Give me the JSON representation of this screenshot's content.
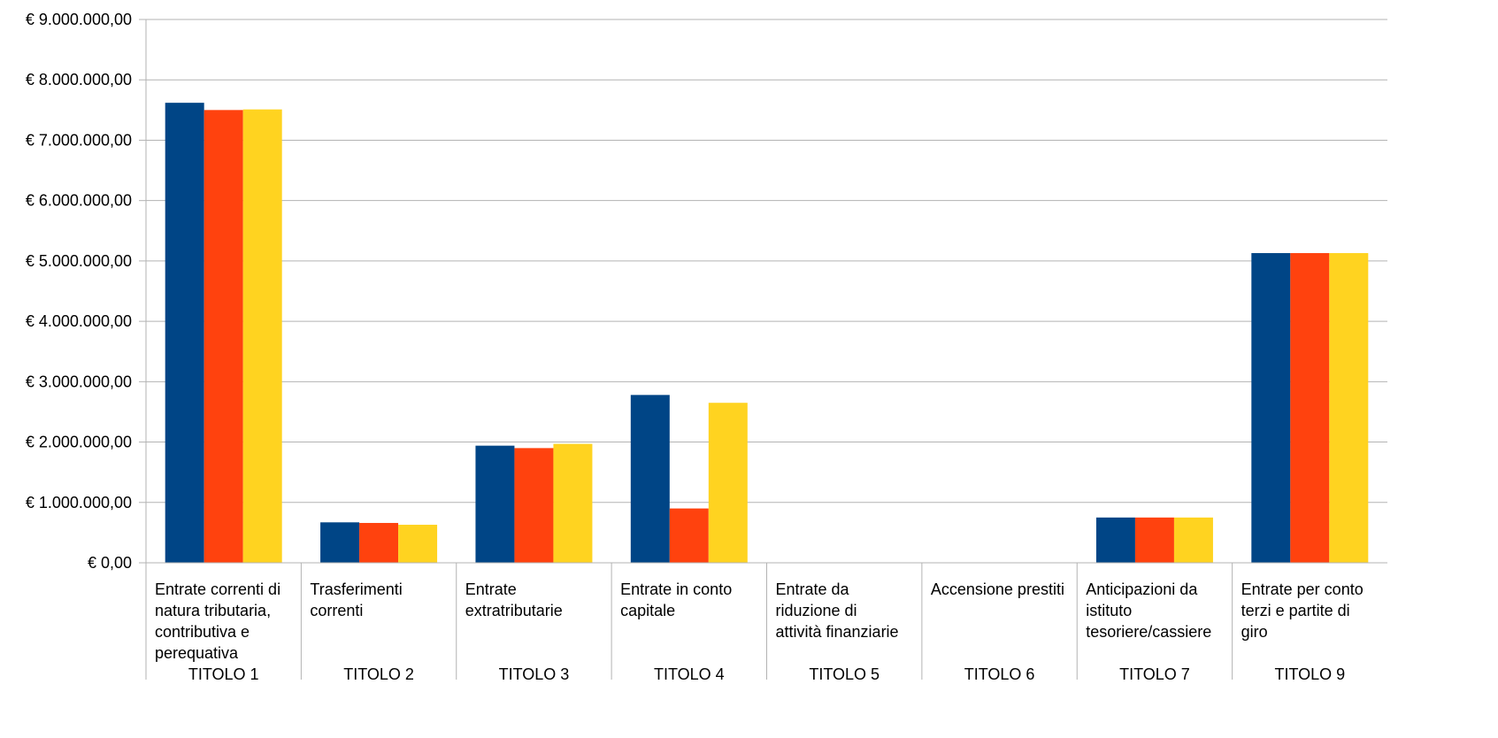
{
  "chart_data": {
    "type": "bar",
    "title": "",
    "xlabel": "",
    "ylabel": "",
    "ylim": [
      0,
      9000000
    ],
    "grid": true,
    "legend": "none",
    "y_ticks": [
      {
        "value": 0,
        "label": "€ 0,00"
      },
      {
        "value": 1000000,
        "label": "€ 1.000.000,00"
      },
      {
        "value": 2000000,
        "label": "€ 2.000.000,00"
      },
      {
        "value": 3000000,
        "label": "€ 3.000.000,00"
      },
      {
        "value": 4000000,
        "label": "€ 4.000.000,00"
      },
      {
        "value": 5000000,
        "label": "€ 5.000.000,00"
      },
      {
        "value": 6000000,
        "label": "€ 6.000.000,00"
      },
      {
        "value": 7000000,
        "label": "€ 7.000.000,00"
      },
      {
        "value": 8000000,
        "label": "€ 8.000.000,00"
      },
      {
        "value": 9000000,
        "label": "€ 9.000.000,00"
      }
    ],
    "categories": [
      {
        "lines": [
          "Entrate correnti di",
          "natura tributaria,",
          "contributiva e",
          "perequativa"
        ],
        "group": "TITOLO 1"
      },
      {
        "lines": [
          "Trasferimenti",
          "correnti"
        ],
        "group": "TITOLO 2"
      },
      {
        "lines": [
          "Entrate",
          "extratributarie"
        ],
        "group": "TITOLO 3"
      },
      {
        "lines": [
          "Entrate in conto",
          "capitale"
        ],
        "group": "TITOLO 4"
      },
      {
        "lines": [
          "Entrate da",
          "riduzione di",
          "attività finanziarie"
        ],
        "group": "TITOLO 5"
      },
      {
        "lines": [
          "Accensione prestiti"
        ],
        "group": "TITOLO 6"
      },
      {
        "lines": [
          "Anticipazioni da",
          "istituto",
          "tesoriere/cassiere"
        ],
        "group": "TITOLO 7"
      },
      {
        "lines": [
          "Entrate per conto",
          "terzi e partite di",
          "giro"
        ],
        "group": "TITOLO 9"
      }
    ],
    "series": [
      {
        "color": "#004586",
        "values": [
          7620000,
          670000,
          1940000,
          2780000,
          0,
          0,
          750000,
          5130000
        ]
      },
      {
        "color": "#ff420e",
        "values": [
          7500000,
          660000,
          1900000,
          900000,
          0,
          0,
          750000,
          5130000
        ]
      },
      {
        "color": "#ffd320",
        "values": [
          7510000,
          630000,
          1970000,
          2650000,
          0,
          0,
          750000,
          5130000
        ]
      }
    ]
  }
}
